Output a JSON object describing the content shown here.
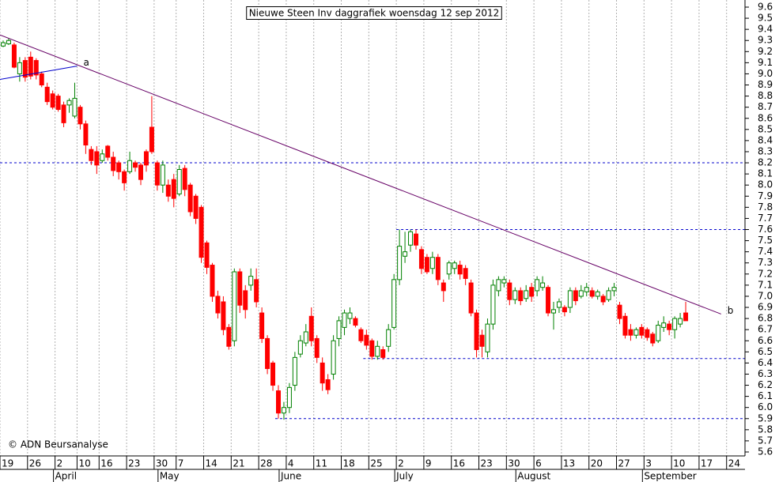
{
  "chart_data": {
    "type": "candlestick",
    "title": "Nieuwe Steen Inv daggrafiek woensdag 12 sep 2012",
    "credit": "© ADN Beursanalyse",
    "up_color": "#008000",
    "down_color": "#ff0000",
    "dates": [
      "03-19",
      "03-20",
      "03-21",
      "03-22",
      "03-23",
      "03-26",
      "03-27",
      "03-28",
      "03-29",
      "03-30",
      "04-02",
      "04-03",
      "04-04",
      "04-05",
      "04-10",
      "04-11",
      "04-12",
      "04-13",
      "04-16",
      "04-17",
      "04-18",
      "04-19",
      "04-20",
      "04-23",
      "04-24",
      "04-25",
      "04-26",
      "04-27",
      "04-30",
      "05-02",
      "05-03",
      "05-04",
      "05-07",
      "05-08",
      "05-09",
      "05-10",
      "05-11",
      "05-14",
      "05-15",
      "05-16",
      "05-17",
      "05-18",
      "05-21",
      "05-22",
      "05-23",
      "05-24",
      "05-25",
      "05-28",
      "05-29",
      "05-30",
      "05-31",
      "06-01",
      "06-04",
      "06-05",
      "06-06",
      "06-07",
      "06-08",
      "06-11",
      "06-12",
      "06-13",
      "06-14",
      "06-15",
      "06-18",
      "06-19",
      "06-20",
      "06-21",
      "06-22",
      "06-25",
      "06-26",
      "06-27",
      "06-28",
      "06-29",
      "07-02",
      "07-03",
      "07-04",
      "07-05",
      "07-06",
      "07-09",
      "07-10",
      "07-11",
      "07-12",
      "07-13",
      "07-16",
      "07-17",
      "07-18",
      "07-19",
      "07-20",
      "07-23",
      "07-24",
      "07-25",
      "07-26",
      "07-27",
      "07-30",
      "07-31",
      "08-01",
      "08-02",
      "08-03",
      "08-06",
      "08-07",
      "08-08",
      "08-09",
      "08-10",
      "08-13",
      "08-14",
      "08-15",
      "08-16",
      "08-17",
      "08-20",
      "08-21",
      "08-22",
      "08-23",
      "08-24",
      "08-27",
      "08-28",
      "08-29",
      "08-30",
      "08-31",
      "09-03",
      "09-04",
      "09-05",
      "09-06",
      "09-07",
      "09-10",
      "09-11",
      "09-12",
      "09-13",
      "09-14",
      "09-17",
      "09-18",
      "09-19",
      "09-20",
      "09-21",
      "09-24",
      "09-25",
      "09-26"
    ],
    "open": [
      9.25,
      9.27,
      9.26,
      9.0,
      9.12,
      9.15,
      9.12,
      9.0,
      8.88,
      8.82,
      8.8,
      8.72,
      8.72,
      8.62,
      8.7,
      8.55,
      8.32,
      8.3,
      8.22,
      8.35,
      8.25,
      8.2,
      8.12,
      8.12,
      8.2,
      8.18,
      8.3,
      8.52,
      8.2,
      8.0,
      8.0,
      8.05,
      7.92,
      8.15,
      8.0,
      7.9,
      7.8,
      7.48,
      7.28,
      7.0,
      6.95,
      6.72,
      6.6,
      7.22,
      7.05,
      7.1,
      7.15,
      6.85,
      6.62,
      6.4,
      6.15,
      5.95,
      6.0,
      6.2,
      6.48,
      6.58,
      6.82,
      6.62,
      6.4,
      6.25,
      6.3,
      6.62,
      6.72,
      6.8,
      6.8,
      6.7,
      6.65,
      6.6,
      6.46,
      6.52,
      6.55,
      6.72,
      7.15,
      7.36,
      7.46,
      7.56,
      7.42,
      7.35,
      7.25,
      7.35,
      7.12,
      7.2,
      7.25,
      7.28,
      7.25,
      7.12,
      6.85,
      6.65,
      6.5,
      6.75,
      7.05,
      7.12,
      7.12,
      6.97,
      7.05,
      6.98,
      7.08,
      7.05,
      7.08,
      7.08,
      6.85,
      6.9,
      6.9,
      6.9,
      7.05,
      7.0,
      7.04,
      7.05,
      7.0,
      7.0,
      6.97,
      7.05,
      6.92,
      6.82,
      6.7,
      6.65,
      6.72,
      6.7,
      6.66,
      6.6,
      6.72,
      6.75,
      6.7,
      6.75,
      6.85,
      null,
      null,
      null,
      null,
      null,
      null,
      null,
      null,
      null,
      null
    ],
    "high": [
      9.3,
      9.32,
      9.28,
      9.15,
      9.15,
      9.2,
      9.14,
      9.02,
      8.92,
      8.85,
      8.82,
      8.75,
      8.78,
      8.92,
      8.72,
      8.58,
      8.35,
      8.35,
      8.32,
      8.36,
      8.3,
      8.22,
      8.14,
      8.3,
      8.22,
      8.2,
      8.32,
      8.8,
      8.22,
      8.22,
      8.05,
      8.1,
      8.18,
      8.18,
      8.02,
      7.92,
      7.82,
      7.5,
      7.3,
      7.05,
      7.0,
      6.75,
      7.25,
      7.25,
      7.1,
      7.25,
      7.25,
      6.9,
      6.65,
      6.42,
      6.2,
      6.05,
      6.22,
      6.5,
      6.65,
      6.75,
      6.9,
      6.65,
      6.45,
      6.3,
      6.65,
      6.82,
      6.88,
      6.9,
      6.82,
      6.72,
      6.7,
      6.62,
      6.6,
      6.55,
      6.75,
      7.2,
      7.6,
      7.58,
      7.6,
      7.6,
      7.45,
      7.38,
      7.4,
      7.38,
      7.15,
      7.32,
      7.32,
      7.32,
      7.28,
      7.15,
      6.88,
      6.7,
      6.8,
      7.15,
      7.18,
      7.18,
      7.15,
      7.08,
      7.08,
      7.1,
      7.12,
      7.18,
      7.18,
      7.1,
      6.95,
      6.98,
      6.92,
      7.08,
      7.08,
      7.1,
      7.12,
      7.08,
      7.06,
      7.02,
      7.08,
      7.12,
      6.95,
      6.85,
      6.75,
      6.72,
      6.75,
      6.72,
      6.68,
      6.78,
      6.82,
      6.78,
      6.82,
      6.85,
      6.95,
      null,
      null,
      null,
      null,
      null,
      null,
      null,
      null,
      null,
      null
    ],
    "low": [
      9.24,
      9.26,
      9.05,
      8.93,
      8.93,
      8.95,
      8.95,
      8.88,
      8.72,
      8.68,
      8.66,
      8.52,
      8.65,
      8.6,
      8.5,
      8.28,
      8.18,
      8.1,
      8.2,
      8.22,
      8.08,
      8.05,
      7.95,
      8.1,
      8.12,
      8.0,
      8.12,
      8.28,
      7.95,
      7.93,
      7.85,
      7.8,
      7.9,
      7.9,
      7.72,
      7.65,
      7.3,
      7.2,
      6.95,
      6.8,
      6.65,
      6.52,
      6.55,
      6.85,
      6.8,
      7.05,
      6.9,
      6.58,
      6.3,
      6.15,
      5.9,
      5.89,
      5.95,
      6.15,
      6.45,
      6.55,
      6.55,
      6.4,
      6.15,
      6.12,
      6.25,
      6.55,
      6.65,
      6.75,
      6.72,
      6.58,
      6.52,
      6.43,
      6.43,
      6.43,
      6.5,
      6.7,
      7.1,
      7.3,
      7.4,
      7.42,
      7.2,
      7.2,
      7.2,
      7.1,
      6.95,
      7.15,
      7.2,
      7.15,
      7.1,
      6.82,
      6.45,
      6.45,
      6.45,
      6.7,
      7.0,
      7.08,
      6.92,
      6.93,
      6.92,
      6.95,
      6.95,
      7.0,
      7.05,
      6.82,
      6.7,
      6.85,
      6.82,
      6.85,
      6.92,
      6.98,
      7.0,
      6.98,
      6.97,
      6.92,
      6.95,
      7.0,
      6.75,
      6.62,
      6.6,
      6.62,
      6.62,
      6.6,
      6.55,
      6.58,
      6.68,
      6.65,
      6.62,
      6.72,
      6.78,
      null,
      null,
      null,
      null,
      null,
      null,
      null,
      null,
      null,
      null
    ],
    "close": [
      9.28,
      9.3,
      9.06,
      9.1,
      8.97,
      8.98,
      8.99,
      8.9,
      8.75,
      8.7,
      8.68,
      8.56,
      8.76,
      8.78,
      8.55,
      8.36,
      8.22,
      8.18,
      8.28,
      8.25,
      8.13,
      8.12,
      8.02,
      8.22,
      8.16,
      8.05,
      8.18,
      8.3,
      8.0,
      8.18,
      7.9,
      7.88,
      8.14,
      7.96,
      7.76,
      7.7,
      7.35,
      7.26,
      7.0,
      6.85,
      6.7,
      6.55,
      7.22,
      6.92,
      6.88,
      7.18,
      6.95,
      6.62,
      6.35,
      6.2,
      5.95,
      6.0,
      6.18,
      6.45,
      6.6,
      6.68,
      6.6,
      6.45,
      6.22,
      6.16,
      6.6,
      6.78,
      6.85,
      6.85,
      6.74,
      6.6,
      6.56,
      6.46,
      6.55,
      6.45,
      6.7,
      7.15,
      7.45,
      7.4,
      7.58,
      7.46,
      7.25,
      7.22,
      7.35,
      7.15,
      7.05,
      7.3,
      7.3,
      7.2,
      7.16,
      6.85,
      6.52,
      6.55,
      6.75,
      7.1,
      7.15,
      7.15,
      6.97,
      7.05,
      6.96,
      7.05,
      7.0,
      7.15,
      7.12,
      6.85,
      6.88,
      6.95,
      6.86,
      7.05,
      6.96,
      7.05,
      7.08,
      7.0,
      7.04,
      6.95,
      7.05,
      7.08,
      6.8,
      6.65,
      6.65,
      6.7,
      6.65,
      6.63,
      6.58,
      6.74,
      6.76,
      6.7,
      6.8,
      6.8,
      6.78,
      null,
      null,
      null,
      null,
      null,
      null,
      null,
      null,
      null,
      null
    ],
    "ylim": [
      5.6,
      9.6
    ],
    "yticks": [
      5.6,
      5.7,
      5.8,
      5.9,
      {
        "value": 6,
        "label": "6.0"
      },
      6.1,
      6.2,
      6.3,
      6.4,
      6.5,
      6.6,
      6.7,
      6.8,
      6.9,
      {
        "value": 7,
        "label": "7.0"
      },
      7.1,
      7.2,
      7.3,
      7.4,
      7.5,
      7.6,
      7.7,
      7.8,
      7.9,
      {
        "value": 8,
        "label": "8.0"
      },
      8.1,
      8.2,
      8.3,
      8.4,
      8.5,
      8.6,
      8.7,
      8.8,
      8.9,
      {
        "value": 9,
        "label": "9.0"
      },
      9.1,
      9.2,
      9.3,
      9.4,
      9.5,
      9.6
    ],
    "xticks": [
      {
        "value": "03-19",
        "label": "19"
      },
      {
        "value": "03-26",
        "label": "26"
      },
      {
        "value": "04-02",
        "label": "2"
      },
      {
        "value": "04-10",
        "label": "10"
      },
      {
        "value": "04-16",
        "label": "16"
      },
      {
        "value": "04-23",
        "label": "23"
      },
      {
        "value": "04-30",
        "label": "30"
      },
      {
        "value": "05-07",
        "label": "7"
      },
      {
        "value": "05-14",
        "label": "14"
      },
      {
        "value": "05-21",
        "label": "21"
      },
      {
        "value": "05-28",
        "label": "28"
      },
      {
        "value": "06-04",
        "label": "4"
      },
      {
        "value": "06-11",
        "label": "11"
      },
      {
        "value": "06-18",
        "label": "18"
      },
      {
        "value": "06-25",
        "label": "25"
      },
      {
        "value": "07-02",
        "label": "2"
      },
      {
        "value": "07-09",
        "label": "9"
      },
      {
        "value": "07-16",
        "label": "16"
      },
      {
        "value": "07-23",
        "label": "23"
      },
      {
        "value": "07-30",
        "label": "30"
      },
      {
        "value": "08-06",
        "label": "6"
      },
      {
        "value": "08-13",
        "label": "13"
      },
      {
        "value": "08-20",
        "label": "20"
      },
      {
        "value": "08-27",
        "label": "27"
      },
      {
        "value": "09-03",
        "label": "3"
      },
      {
        "value": "09-10",
        "label": "10"
      },
      {
        "value": "09-17",
        "label": "17"
      },
      {
        "value": "09-24",
        "label": "24"
      }
    ],
    "months": [
      {
        "value": "04-02",
        "label": "April"
      },
      {
        "value": "05-02",
        "label": "May"
      },
      {
        "value": "06-01",
        "label": "June"
      },
      {
        "value": "07-02",
        "label": "July"
      },
      {
        "value": "08-01",
        "label": "August"
      },
      {
        "value": "09-03",
        "label": "September"
      }
    ],
    "grid": true,
    "hlines": [
      {
        "value": 8.2,
        "from": "03-19"
      },
      {
        "value": 7.6,
        "from": "07-02"
      },
      {
        "value": 6.44,
        "from": "06-22"
      },
      {
        "value": 5.9,
        "from": "05-31"
      }
    ],
    "trendlines": [
      {
        "label": "a",
        "from": "03-19",
        "to": "04-10",
        "start": 8.95,
        "end": 9.07
      },
      {
        "label": "b",
        "from": "03-19",
        "to": "09-21",
        "start": 9.35,
        "end": 6.84
      }
    ]
  }
}
